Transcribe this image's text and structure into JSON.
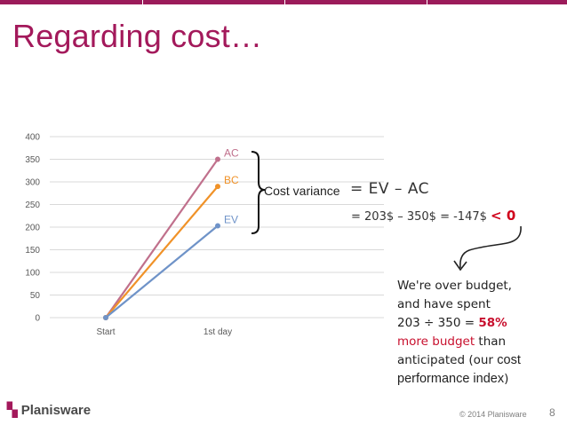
{
  "slide": {
    "title": "Regarding cost…",
    "page_number": "8",
    "footer_copyright": "© 2014 Planisware",
    "logo_text": "Planisware"
  },
  "colors": {
    "accent": "#a3195b",
    "ac": "#c0708c",
    "bc": "#f09228",
    "ev": "#6f93c8",
    "negative": "#d0021b"
  },
  "chart_data": {
    "type": "line",
    "categories": [
      "Start",
      "1st day"
    ],
    "ylim": [
      0,
      400
    ],
    "yticks": [
      0,
      50,
      100,
      150,
      200,
      250,
      300,
      350,
      400
    ],
    "grid": true,
    "legend": "none",
    "series": [
      {
        "key": "ac",
        "name": "AC",
        "values": [
          0,
          350
        ]
      },
      {
        "key": "bc",
        "name": "BC",
        "values": [
          0,
          290
        ]
      },
      {
        "key": "ev",
        "name": "EV",
        "values": [
          0,
          203
        ]
      }
    ]
  },
  "annotations": {
    "cost_variance_label": "Cost variance",
    "formula_line1": "= EV – AC",
    "formula_line2_prefix": "= 203$ – 350$ = -147$",
    "formula_line2_suffix": "< 0",
    "note_line1": "We're over budget,",
    "note_line2": "and have spent",
    "note_line3_prefix": "203 ÷ 350 =",
    "note_line3_value": "58%",
    "note_line4_highlight": "more budget",
    "note_line4_rest": "than",
    "note_line5_prefix": "anticipated (our",
    "note_line5_plain": "cost",
    "note_line6_plain": "performance index",
    "note_line6_suffix": ")"
  }
}
